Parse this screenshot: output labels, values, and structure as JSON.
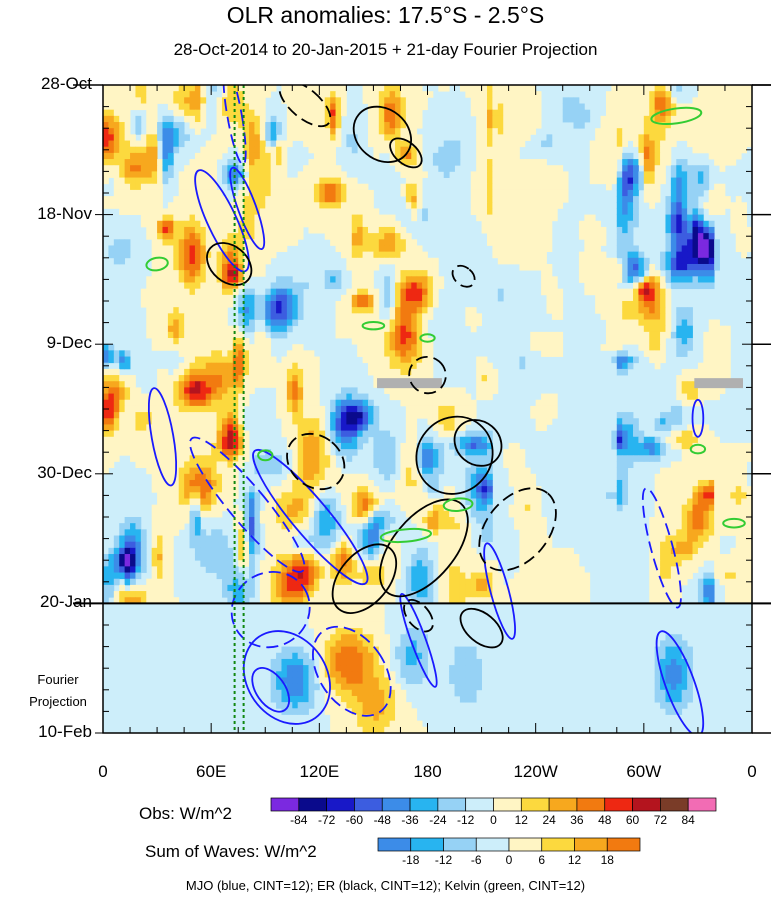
{
  "title": "OLR anomalies: 17.5°S - 2.5°S",
  "subtitle": "28-Oct-2014 to 20-Jan-2015 + 21-day Fourier Projection",
  "fourier_label": "Fourier Projection",
  "footer": "MJO (blue, CINT=12); ER (black, CINT=12); Kelvin (green, CINT=12)",
  "chart_data": {
    "type": "heatmap",
    "title": "OLR anomalies: 17.5°S - 2.5°S",
    "subtitle": "28-Oct-2014 to 20-Jan-2015 + 21-day Fourier Projection",
    "xlabel": "",
    "ylabel": "",
    "x_ticks": [
      "0",
      "60E",
      "120E",
      "180",
      "120W",
      "60W",
      "0"
    ],
    "x_tick_values": [
      0,
      60,
      120,
      180,
      240,
      300,
      360
    ],
    "xlim": [
      0,
      360
    ],
    "y_ticks": [
      "28-Oct",
      "18-Nov",
      "9-Dec",
      "30-Dec",
      "20-Jan",
      "10-Feb"
    ],
    "y_tick_days": [
      0,
      21,
      42,
      63,
      84,
      105
    ],
    "ylim_days": [
      0,
      105
    ],
    "projection_start_day": 84,
    "dashed_longitudes": [
      73,
      78
    ],
    "legend_obs": {
      "title": "Obs: W/m^2",
      "ticks": [
        "-84",
        "-72",
        "-60",
        "-48",
        "-36",
        "-24",
        "-12",
        "0",
        "12",
        "24",
        "36",
        "48",
        "60",
        "72",
        "84"
      ],
      "colors": [
        "#7b29e0",
        "#0a0a8c",
        "#1818c8",
        "#3c5de0",
        "#3c8ce8",
        "#28b4f0",
        "#96d2f5",
        "#cdeefa",
        "#fff5c4",
        "#fcd93e",
        "#f7a81e",
        "#f27a10",
        "#ee2812",
        "#b4141e",
        "#7a3c28",
        "#f26cb4"
      ]
    },
    "legend_waves": {
      "title": "Sum of Waves: W/m^2",
      "ticks": [
        "-18",
        "-12",
        "-6",
        "0",
        "6",
        "12",
        "18"
      ],
      "colors": [
        "#3c8ce8",
        "#28b4f0",
        "#96d2f5",
        "#cdeefa",
        "#fff5c4",
        "#fcd93e",
        "#f7a81e",
        "#f27a10"
      ]
    },
    "contours": [
      {
        "wave": "MJO",
        "color": "blue",
        "cint": 12
      },
      {
        "wave": "ER",
        "color": "black",
        "cint": 12
      },
      {
        "wave": "Kelvin",
        "color": "green",
        "cint": 12
      }
    ],
    "series": []
  }
}
